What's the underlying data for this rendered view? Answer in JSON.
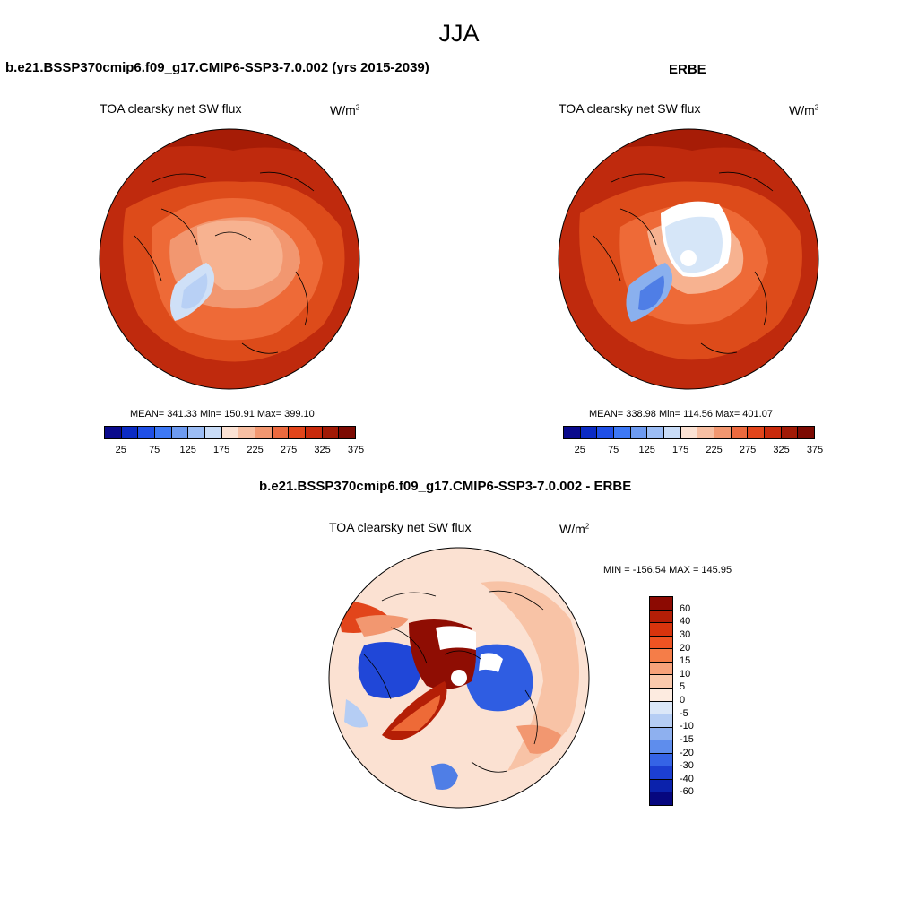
{
  "season": "JJA",
  "panels": [
    {
      "title": "b.e21.BSSP370cmip6.f09_g17.CMIP6-SSP3-7.0.002 (yrs 2015-2039)",
      "variable": "TOA clearsky net SW flux",
      "units_base": "W/m",
      "units_exp": "2",
      "stats": "MEAN= 341.33  Min= 150.91  Max= 399.10",
      "mean": 341.33,
      "min": 150.91,
      "max": 399.1
    },
    {
      "title": "ERBE",
      "variable": "TOA clearsky net SW flux",
      "units_base": "W/m",
      "units_exp": "2",
      "stats": "MEAN= 338.98  Min= 114.56  Max= 401.07",
      "mean": 338.98,
      "min": 114.56,
      "max": 401.07
    },
    {
      "title": "b.e21.BSSP370cmip6.f09_g17.CMIP6-SSP3-7.0.002 - ERBE",
      "variable": "TOA clearsky net SW flux",
      "units_base": "W/m",
      "units_exp": "2",
      "stats": "MIN = -156.54 MAX = 145.95",
      "min": -156.54,
      "max": 145.95
    }
  ],
  "colorbar_abs": {
    "tick_labels": [
      "25",
      "75",
      "125",
      "175",
      "225",
      "275",
      "325",
      "375"
    ],
    "colors": [
      "#0a0a8c",
      "#0b2bc4",
      "#1f4fe6",
      "#3d78f5",
      "#6d9af0",
      "#9cbdf5",
      "#c9dcf7",
      "#fbe2d4",
      "#f7bfa3",
      "#f29770",
      "#ec6a3f",
      "#e2451b",
      "#c82a0c",
      "#a11a06",
      "#7c0a02"
    ]
  },
  "colorbar_diff": {
    "tick_labels": [
      "60",
      "40",
      "30",
      "20",
      "15",
      "10",
      "5",
      "0",
      "-5",
      "-10",
      "-15",
      "-20",
      "-30",
      "-40",
      "-60"
    ],
    "colors": [
      "#8c0a02",
      "#b41e06",
      "#d8340d",
      "#ee5322",
      "#f57d48",
      "#f8a27a",
      "#fbc9ac",
      "#fdebe0",
      "#dbe7f8",
      "#b5cdf4",
      "#8eb0ef",
      "#5e8ded",
      "#3564e6",
      "#1c3fd2",
      "#0b22ac",
      "#06077f"
    ]
  },
  "colors": {
    "hot": "#bf2a0d",
    "warm": "#dd4b1a",
    "mid": "#ef7a49",
    "light": "#f7b290",
    "pale": "#fbe1d2",
    "icepale": "#cfe0f7",
    "ice": "#8ab0ee",
    "deepblue": "#2047d8",
    "darkred": "#8f0d03"
  }
}
